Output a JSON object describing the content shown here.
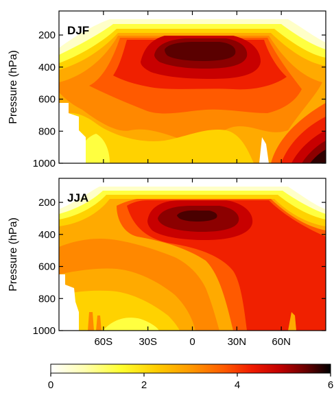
{
  "palette": [
    "#ffffff",
    "#ffffc0",
    "#ffff30",
    "#ffd000",
    "#ffaa00",
    "#ff7a00",
    "#ff4800",
    "#f01400",
    "#c80000",
    "#8c0000",
    "#4a0000",
    "#000000"
  ],
  "chart_data": [
    {
      "type": "heatmap",
      "label": "DJF",
      "ylabel": "Pressure (hPa)",
      "xlim": [
        -90,
        90
      ],
      "ylim": [
        1000,
        50
      ],
      "yticks": [
        200,
        400,
        600,
        800,
        1000
      ],
      "xticks": [
        -60,
        -30,
        0,
        30,
        60
      ],
      "xtick_labels": [
        "60S",
        "30S",
        "0",
        "30N",
        "60N"
      ],
      "show_xtick_labels": false,
      "colorbar_range": [
        0,
        6
      ]
    },
    {
      "type": "heatmap",
      "label": "JJA",
      "ylabel": "Pressure (hPa)",
      "xlim": [
        -90,
        90
      ],
      "ylim": [
        1000,
        50
      ],
      "yticks": [
        200,
        400,
        600,
        800,
        1000
      ],
      "xticks": [
        -60,
        -30,
        0,
        30,
        60
      ],
      "xtick_labels": [
        "60S",
        "30S",
        "0",
        "30N",
        "60N"
      ],
      "show_xtick_labels": true,
      "colorbar_range": [
        0,
        6
      ]
    }
  ],
  "colorbar": {
    "min": 0,
    "max": 6,
    "tick_values": [
      0,
      2,
      4,
      6
    ],
    "tick_labels": [
      "0",
      "2",
      "4",
      "6"
    ]
  }
}
